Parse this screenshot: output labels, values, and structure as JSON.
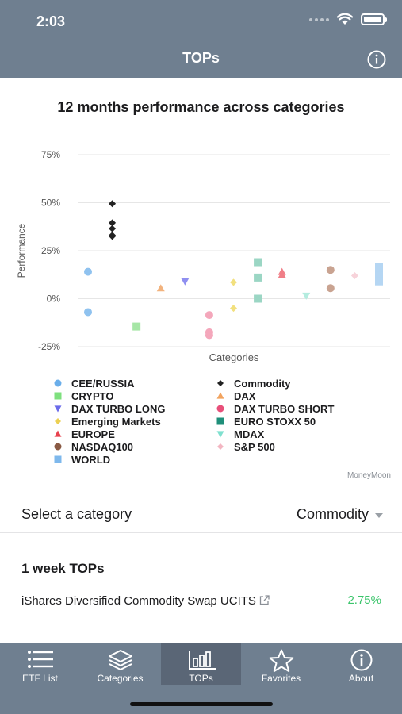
{
  "status": {
    "time": "2:03"
  },
  "nav": {
    "title": "TOPs"
  },
  "chart_data": {
    "type": "scatter",
    "title": "12 months performance across categories",
    "xlabel": "Categories",
    "ylabel": "Performance",
    "ylim": [
      -25,
      75
    ],
    "yticks": [
      -25,
      0,
      25,
      50,
      75
    ],
    "ytick_labels": [
      "-25%",
      "0%",
      "25%",
      "50%",
      "75%"
    ],
    "grid": "horizontal",
    "legend_position": "bottom",
    "series": [
      {
        "name": "CEE/RUSSIA",
        "color": "#8fc2ef",
        "marker": "circle",
        "category_index": 0,
        "values": [
          14,
          -7
        ]
      },
      {
        "name": "Commodity",
        "color": "#222222",
        "marker": "diamond",
        "category_index": 1,
        "values": [
          49.5,
          39.5,
          36.5,
          33,
          32.5
        ]
      },
      {
        "name": "CRYPTO",
        "color": "#a6e6a6",
        "marker": "square",
        "category_index": 2,
        "values": [
          -14.5
        ]
      },
      {
        "name": "DAX",
        "color": "#f2b37e",
        "marker": "triangle-up",
        "category_index": 3,
        "values": [
          5.5
        ]
      },
      {
        "name": "DAX TURBO LONG",
        "color": "#8f8ff0",
        "marker": "triangle-down",
        "category_index": 4,
        "values": [
          9
        ]
      },
      {
        "name": "DAX TURBO SHORT",
        "color": "#f4a7bb",
        "marker": "circle",
        "category_index": 5,
        "values": [
          -8.5,
          -17.5,
          -19
        ]
      },
      {
        "name": "Emerging Markets",
        "color": "#f2e07e",
        "marker": "diamond",
        "category_index": 6,
        "values": [
          8.5,
          -5
        ]
      },
      {
        "name": "EURO STOXX 50",
        "color": "#9bd6c4",
        "marker": "square",
        "category_index": 7,
        "values": [
          19,
          11,
          0
        ]
      },
      {
        "name": "EUROPE",
        "color": "#f07f88",
        "marker": "triangle-up",
        "category_index": 8,
        "values": [
          14,
          12.5
        ]
      },
      {
        "name": "MDAX",
        "color": "#b4ecdf",
        "marker": "triangle-down",
        "category_index": 9,
        "values": [
          1.5
        ]
      },
      {
        "name": "NASDAQ100",
        "color": "#c9a391",
        "marker": "circle",
        "category_index": 10,
        "values": [
          15,
          5.5
        ]
      },
      {
        "name": "S&P 500",
        "color": "#f7d3da",
        "marker": "diamond",
        "category_index": 11,
        "values": [
          12
        ]
      },
      {
        "name": "WORLD",
        "color": "#b5d6f3",
        "marker": "square",
        "category_index": 12,
        "values": [
          16.5,
          14.5,
          12,
          9
        ]
      }
    ]
  },
  "legend": {
    "items": [
      {
        "label": "CEE/RUSSIA",
        "color": "#6aaeea",
        "marker": "circle"
      },
      {
        "label": "Commodity",
        "color": "#222222",
        "marker": "diamond"
      },
      {
        "label": "CRYPTO",
        "color": "#7ee07e",
        "marker": "square"
      },
      {
        "label": "DAX",
        "color": "#f2a35e",
        "marker": "triangle-up"
      },
      {
        "label": "DAX TURBO LONG",
        "color": "#6b6bea",
        "marker": "triangle-down"
      },
      {
        "label": "DAX TURBO SHORT",
        "color": "#e8507a",
        "marker": "circle"
      },
      {
        "label": "Emerging Markets",
        "color": "#ecd052",
        "marker": "diamond"
      },
      {
        "label": "EURO STOXX 50",
        "color": "#1f8f7a",
        "marker": "square"
      },
      {
        "label": "EUROPE",
        "color": "#e8424e",
        "marker": "triangle-up"
      },
      {
        "label": "MDAX",
        "color": "#7fe0cf",
        "marker": "triangle-down"
      },
      {
        "label": "NASDAQ100",
        "color": "#8a5a44",
        "marker": "circle"
      },
      {
        "label": "S&P 500",
        "color": "#f3b6c2",
        "marker": "diamond"
      },
      {
        "label": "WORLD",
        "color": "#7eb8ec",
        "marker": "square"
      }
    ]
  },
  "watermark": "MoneyMoon",
  "selector": {
    "label": "Select a category",
    "value": "Commodity"
  },
  "tops": {
    "title": "1 week TOPs",
    "items": [
      {
        "name": "iShares Diversified Commodity Swap UCITS",
        "performance": "2.75%"
      }
    ]
  },
  "tabs": [
    {
      "label": "ETF List",
      "icon": "list-icon"
    },
    {
      "label": "Categories",
      "icon": "layers-icon"
    },
    {
      "label": "TOPs",
      "icon": "bar-chart-icon",
      "active": true
    },
    {
      "label": "Favorites",
      "icon": "star-icon"
    },
    {
      "label": "About",
      "icon": "info-icon"
    }
  ],
  "colors": {
    "header": "#6f7f90",
    "positive": "#3cc56c"
  }
}
